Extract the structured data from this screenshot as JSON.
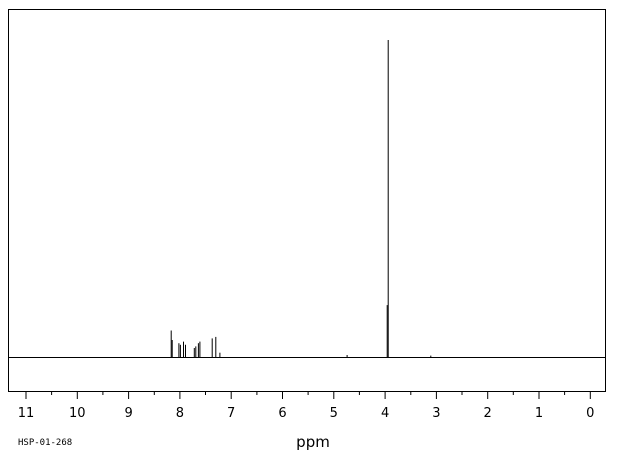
{
  "chart_data": {
    "type": "line",
    "xlabel": "ppm",
    "sample_id": "HSP-01-268",
    "x_reversed": true,
    "xlim": [
      11.35,
      -0.3
    ],
    "ylim": [
      0,
      100
    ],
    "grid": false,
    "major_ticks": [
      11,
      10,
      9,
      8,
      7,
      6,
      5,
      4,
      3,
      2,
      1,
      0
    ],
    "minor_tick_step": 0.5,
    "peaks": [
      {
        "ppm": 8.17,
        "intensity": 8.5
      },
      {
        "ppm": 8.15,
        "intensity": 5.5
      },
      {
        "ppm": 8.02,
        "intensity": 4.5
      },
      {
        "ppm": 7.99,
        "intensity": 4.0
      },
      {
        "ppm": 7.93,
        "intensity": 5.0
      },
      {
        "ppm": 7.89,
        "intensity": 4.0
      },
      {
        "ppm": 7.72,
        "intensity": 3.0
      },
      {
        "ppm": 7.69,
        "intensity": 3.5
      },
      {
        "ppm": 7.64,
        "intensity": 4.5
      },
      {
        "ppm": 7.61,
        "intensity": 5.0
      },
      {
        "ppm": 7.37,
        "intensity": 6.0
      },
      {
        "ppm": 7.3,
        "intensity": 6.5
      },
      {
        "ppm": 7.22,
        "intensity": 1.5
      },
      {
        "ppm": 4.74,
        "intensity": 0.8
      },
      {
        "ppm": 3.94,
        "intensity": 100.0
      },
      {
        "ppm": 3.96,
        "intensity": 16.5
      },
      {
        "ppm": 3.11,
        "intensity": 0.6
      }
    ]
  }
}
